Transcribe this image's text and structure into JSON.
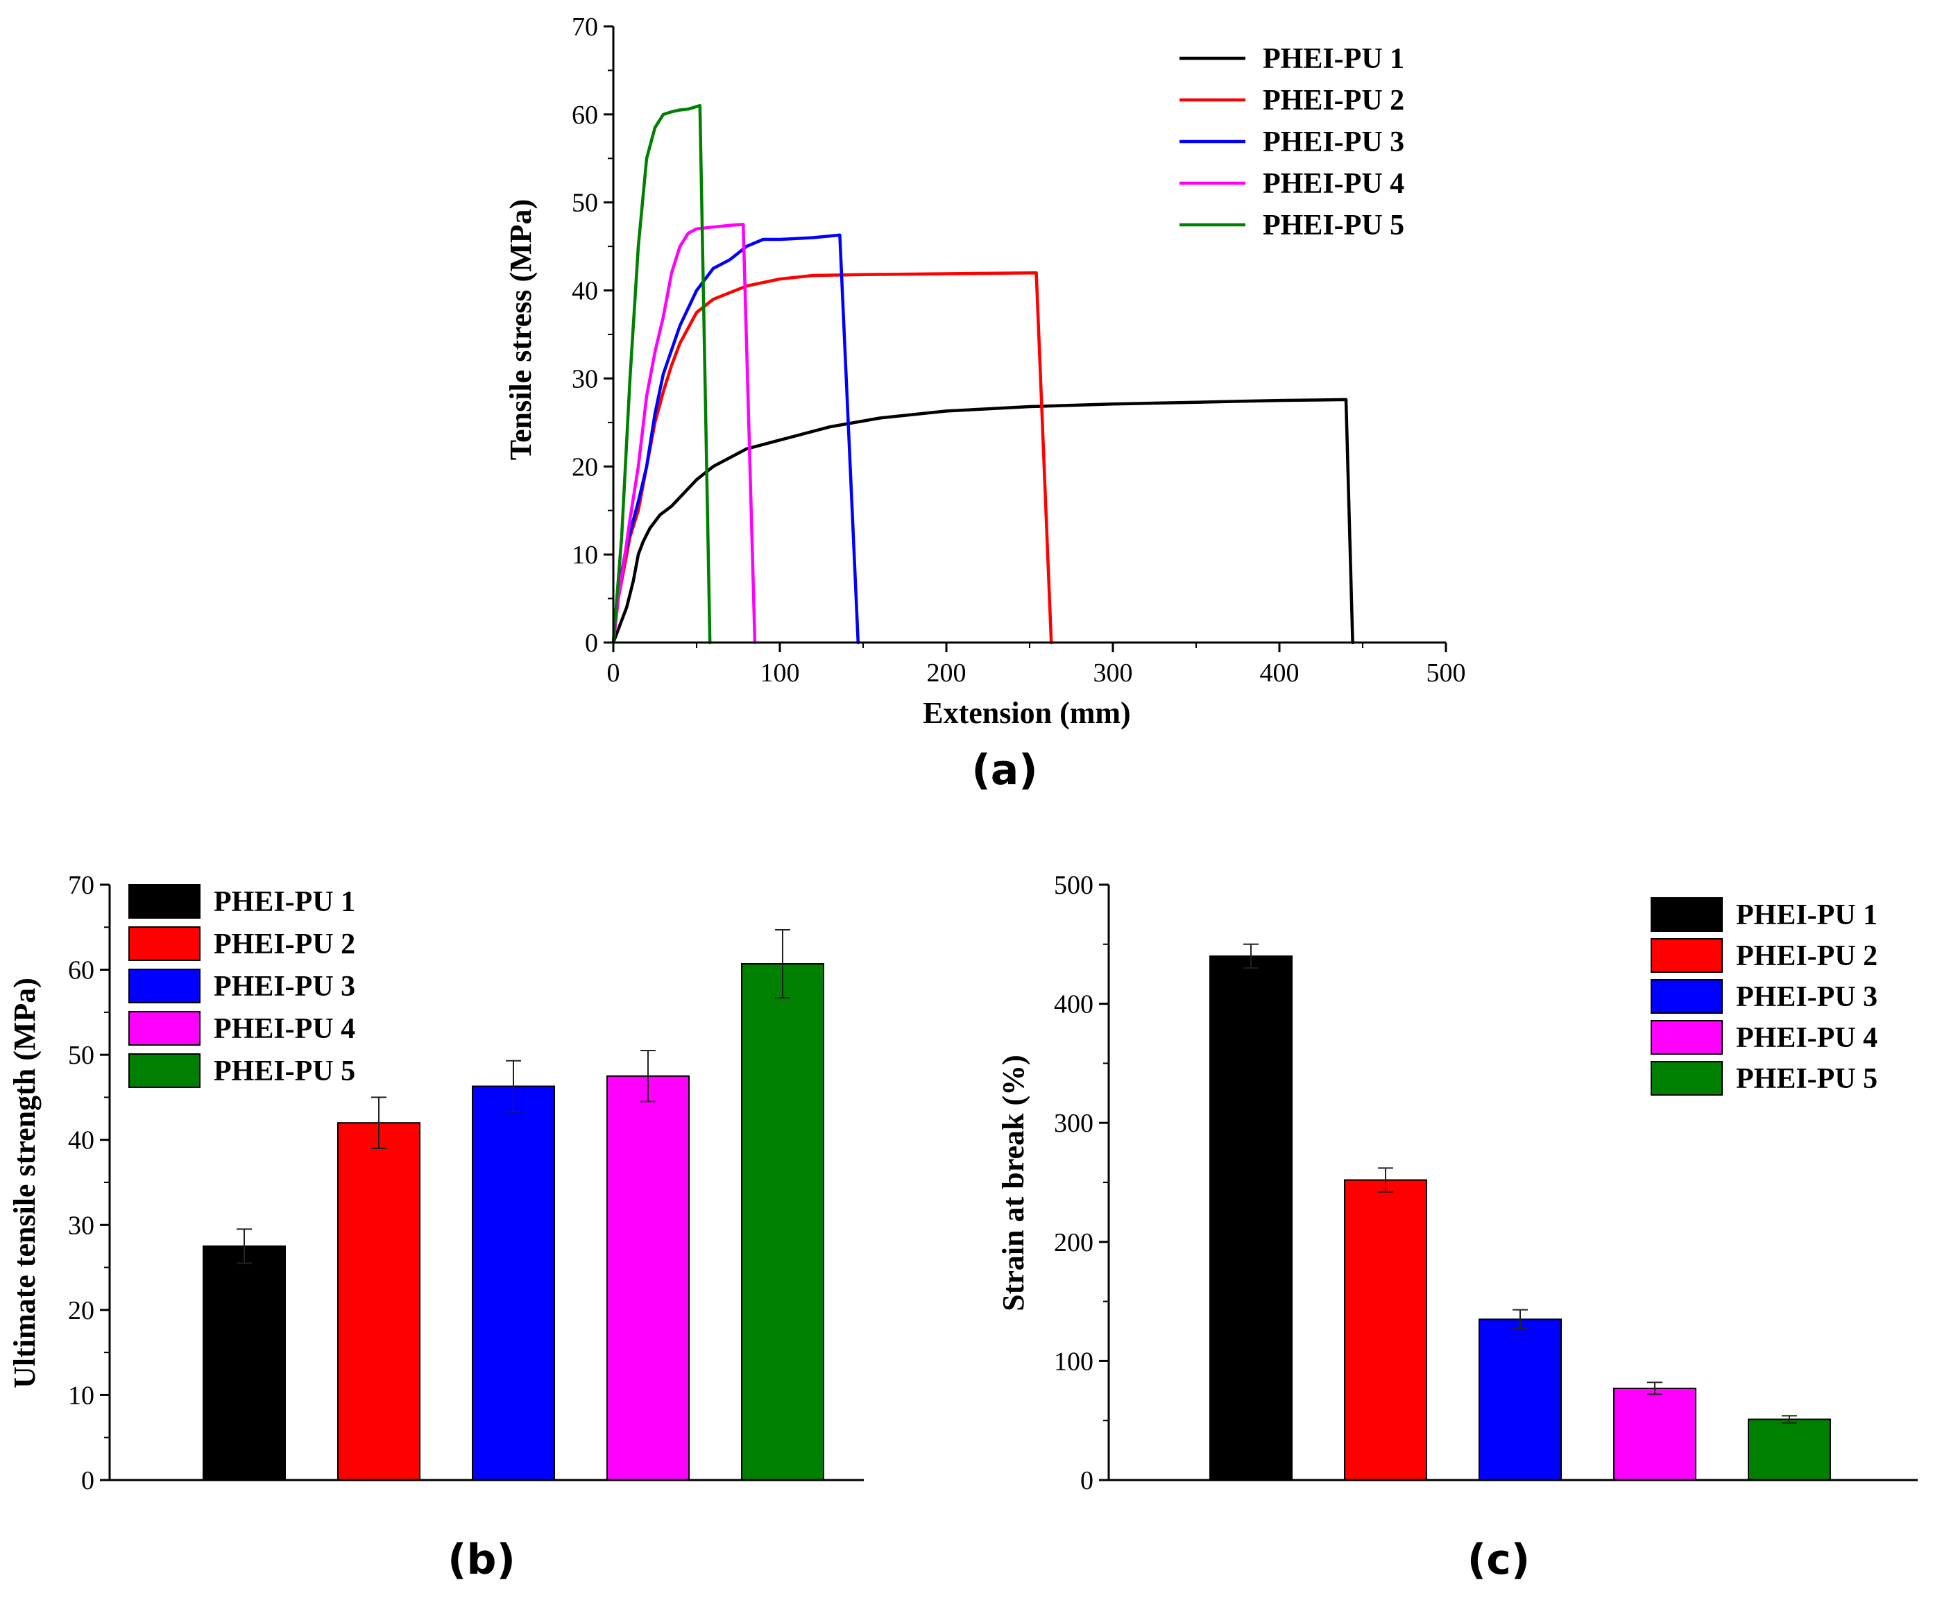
{
  "chart_data": [
    {
      "id": "a",
      "type": "line",
      "panel_label": "(a)",
      "xlabel": "Extension (mm)",
      "ylabel": "Tensile stress (MPa)",
      "xlim": [
        0,
        500
      ],
      "ylim": [
        0,
        70
      ],
      "xticks": [
        0,
        100,
        200,
        300,
        400,
        500
      ],
      "yticks": [
        0,
        10,
        20,
        30,
        40,
        50,
        60,
        70
      ],
      "legend_position": "top-right",
      "series": [
        {
          "name": "PHEI-PU 1",
          "color": "#000000",
          "x": [
            0,
            4,
            8,
            12,
            15,
            18,
            22,
            28,
            35,
            40,
            45,
            50,
            60,
            80,
            100,
            130,
            160,
            200,
            250,
            300,
            350,
            400,
            440,
            444
          ],
          "y": [
            0,
            2,
            4,
            7,
            10,
            11.5,
            13,
            14.5,
            15.5,
            16.5,
            17.5,
            18.5,
            20,
            22,
            23,
            24.5,
            25.5,
            26.3,
            26.8,
            27.1,
            27.3,
            27.5,
            27.6,
            0
          ]
        },
        {
          "name": "PHEI-PU 2",
          "color": "#ff0000",
          "x": [
            0,
            3,
            7,
            10,
            15,
            20,
            25,
            30,
            35,
            40,
            50,
            60,
            80,
            100,
            120,
            150,
            200,
            254,
            263
          ],
          "y": [
            0,
            5,
            9,
            12,
            15,
            20,
            25,
            28.5,
            31.5,
            34,
            37.5,
            39,
            40.5,
            41.3,
            41.7,
            41.8,
            41.9,
            42,
            0
          ]
        },
        {
          "name": "PHEI-PU 3",
          "color": "#0000ff",
          "x": [
            0,
            3,
            7,
            10,
            15,
            20,
            25,
            30,
            40,
            50,
            60,
            70,
            80,
            90,
            100,
            120,
            136,
            147
          ],
          "y": [
            0,
            6,
            10,
            12.5,
            16,
            20,
            26,
            30.5,
            36,
            40,
            42.5,
            43.5,
            45,
            45.8,
            45.8,
            46,
            46.3,
            0
          ]
        },
        {
          "name": "PHEI-PU 4",
          "color": "#ff00ff",
          "x": [
            0,
            3,
            7,
            10,
            15,
            20,
            25,
            30,
            35,
            40,
            45,
            50,
            60,
            70,
            78,
            85
          ],
          "y": [
            0,
            5,
            10,
            14,
            20,
            28,
            33,
            37,
            42,
            45,
            46.5,
            47,
            47.2,
            47.4,
            47.5,
            0
          ]
        },
        {
          "name": "PHEI-PU 5",
          "color": "#008000",
          "x": [
            0,
            5,
            10,
            15,
            20,
            25,
            30,
            35,
            40,
            45,
            52,
            58
          ],
          "y": [
            0,
            12,
            30,
            45,
            55,
            58.5,
            60,
            60.3,
            60.5,
            60.6,
            61,
            0
          ]
        }
      ]
    },
    {
      "id": "b",
      "type": "bar",
      "panel_label": "(b)",
      "xlabel": "",
      "ylabel": "Ultimate tensile strength (MPa)",
      "ylim": [
        0,
        70
      ],
      "yticks": [
        0,
        10,
        20,
        30,
        40,
        50,
        60,
        70
      ],
      "legend_position": "top-left",
      "categories": [
        "PHEI-PU 1",
        "PHEI-PU 2",
        "PHEI-PU 3",
        "PHEI-PU 4",
        "PHEI-PU 5"
      ],
      "colors": [
        "#000000",
        "#ff0000",
        "#0000ff",
        "#ff00ff",
        "#008000"
      ],
      "values": [
        27.5,
        42,
        46.3,
        47.5,
        60.7
      ],
      "errors": [
        2,
        3,
        3,
        3,
        4
      ]
    },
    {
      "id": "c",
      "type": "bar",
      "panel_label": "(c)",
      "xlabel": "",
      "ylabel": "Strain at break (%)",
      "ylim": [
        0,
        500
      ],
      "yticks": [
        0,
        100,
        200,
        300,
        400,
        500
      ],
      "legend_position": "top-right",
      "categories": [
        "PHEI-PU 1",
        "PHEI-PU 2",
        "PHEI-PU 3",
        "PHEI-PU 4",
        "PHEI-PU 5"
      ],
      "colors": [
        "#000000",
        "#ff0000",
        "#0000ff",
        "#ff00ff",
        "#008000"
      ],
      "values": [
        440,
        252,
        135,
        77,
        51
      ],
      "errors": [
        10,
        10,
        8,
        5,
        3
      ]
    }
  ]
}
